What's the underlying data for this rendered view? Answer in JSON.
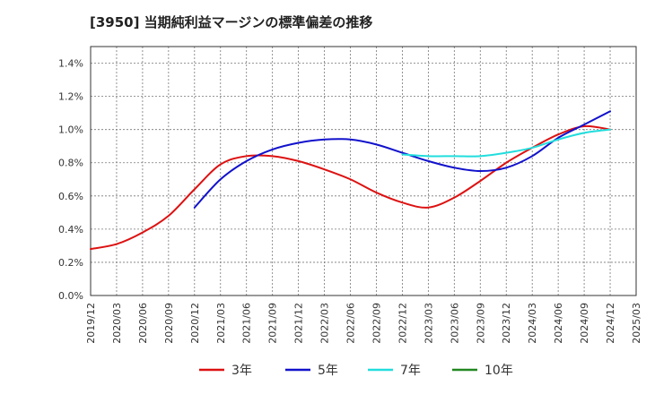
{
  "chart_data": {
    "type": "line",
    "title": "[3950]  当期純利益マージンの標準偏差の推移",
    "xlabel": "",
    "ylabel": "",
    "ylim": [
      0,
      1.5
    ],
    "yticks": [
      "0.0%",
      "0.2%",
      "0.4%",
      "0.6%",
      "0.8%",
      "1.0%",
      "1.2%",
      "1.4%"
    ],
    "ytick_values": [
      0,
      0.2,
      0.4,
      0.6,
      0.8,
      1.0,
      1.2,
      1.4
    ],
    "xticks": [
      "2019/12",
      "2020/03",
      "2020/06",
      "2020/09",
      "2020/12",
      "2021/03",
      "2021/06",
      "2021/09",
      "2021/12",
      "2022/03",
      "2022/06",
      "2022/09",
      "2022/12",
      "2023/03",
      "2023/06",
      "2023/09",
      "2023/12",
      "2024/03",
      "2024/06",
      "2024/09",
      "2024/12",
      "2025/03"
    ],
    "grid": true,
    "legend_position": "bottom",
    "series": [
      {
        "name": "3年",
        "color": "#dd1111",
        "x": [
          "2019/12",
          "2020/03",
          "2020/06",
          "2020/09",
          "2020/12",
          "2021/03",
          "2021/06",
          "2021/09",
          "2021/12",
          "2022/03",
          "2022/06",
          "2022/09",
          "2022/12",
          "2023/03",
          "2023/06",
          "2023/09",
          "2023/12",
          "2024/03",
          "2024/06",
          "2024/09",
          "2024/12"
        ],
        "values": [
          0.28,
          0.31,
          0.38,
          0.48,
          0.64,
          0.79,
          0.84,
          0.84,
          0.81,
          0.76,
          0.7,
          0.62,
          0.56,
          0.53,
          0.59,
          0.69,
          0.8,
          0.89,
          0.97,
          1.02,
          1.0
        ]
      },
      {
        "name": "5年",
        "color": "#1111cc",
        "x": [
          "2020/12",
          "2021/03",
          "2021/06",
          "2021/09",
          "2021/12",
          "2022/03",
          "2022/06",
          "2022/09",
          "2022/12",
          "2023/03",
          "2023/06",
          "2023/09",
          "2023/12",
          "2024/03",
          "2024/06",
          "2024/09",
          "2024/12"
        ],
        "values": [
          0.53,
          0.7,
          0.81,
          0.88,
          0.92,
          0.94,
          0.94,
          0.91,
          0.86,
          0.81,
          0.77,
          0.75,
          0.77,
          0.84,
          0.95,
          1.03,
          1.11
        ]
      },
      {
        "name": "7年",
        "color": "#22dddd",
        "x": [
          "2022/12",
          "2023/03",
          "2023/06",
          "2023/09",
          "2023/12",
          "2024/03",
          "2024/06",
          "2024/09",
          "2024/12"
        ],
        "values": [
          0.85,
          0.84,
          0.84,
          0.84,
          0.86,
          0.89,
          0.94,
          0.98,
          1.0
        ]
      },
      {
        "name": "10年",
        "color": "#228822",
        "x": [],
        "values": []
      }
    ]
  }
}
